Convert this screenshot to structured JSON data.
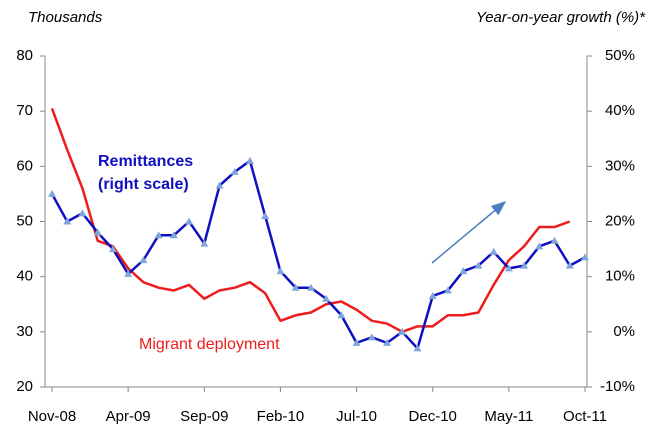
{
  "chart_data": {
    "type": "line",
    "y_axis_title": "Thousands",
    "y2_axis_title": "Year-on-year growth (%)*",
    "categories": [
      "Nov-08",
      null,
      null,
      null,
      null,
      "Apr-09",
      null,
      null,
      null,
      null,
      "Sep-09",
      null,
      null,
      null,
      null,
      "Feb-10",
      null,
      null,
      null,
      null,
      "Jul-10",
      null,
      null,
      null,
      null,
      "Dec-10",
      null,
      null,
      null,
      null,
      "May-11",
      null,
      null,
      null,
      null,
      "Oct-11"
    ],
    "ylim": [
      20,
      80
    ],
    "yticks": [
      20,
      30,
      40,
      50,
      60,
      70,
      80
    ],
    "y2lim": [
      -10,
      50
    ],
    "y2ticks": [
      {
        "value": -10,
        "label": "-10%"
      },
      {
        "value": 0,
        "label": "0%"
      },
      {
        "value": 10,
        "label": "10%"
      },
      {
        "value": 20,
        "label": "20%"
      },
      {
        "value": 30,
        "label": "30%"
      },
      {
        "value": 40,
        "label": "40%"
      },
      {
        "value": 50,
        "label": "50%"
      }
    ],
    "series": [
      {
        "name": "Migrant deployment",
        "color": "#ee1c1c",
        "axis": "y",
        "values": [
          70.5,
          63,
          56,
          46.5,
          45.5,
          41.5,
          39,
          38,
          37.5,
          38.5,
          36,
          37.5,
          38,
          39,
          37,
          32,
          33,
          33.5,
          35,
          35.5,
          34,
          32,
          31.5,
          30,
          31,
          31,
          33,
          33,
          33.5,
          38.5,
          43,
          45.5,
          49,
          49,
          50,
          null
        ]
      },
      {
        "name": "Remittances",
        "color": "#1010c0",
        "axis": "y2",
        "values": [
          25,
          20,
          21.5,
          18,
          15,
          10.5,
          13,
          17.5,
          17.5,
          20,
          16,
          26.5,
          29,
          31,
          21,
          11,
          8,
          8,
          6,
          3,
          -2,
          -1,
          -2,
          0,
          -3,
          6.5,
          7.5,
          11,
          12,
          14.5,
          11.5,
          12,
          15.5,
          16.5,
          12,
          13.5
        ]
      }
    ],
    "annotations": {
      "remittances": [
        "Remittances",
        "(right scale)"
      ],
      "migrant": "Migrant deployment"
    }
  }
}
